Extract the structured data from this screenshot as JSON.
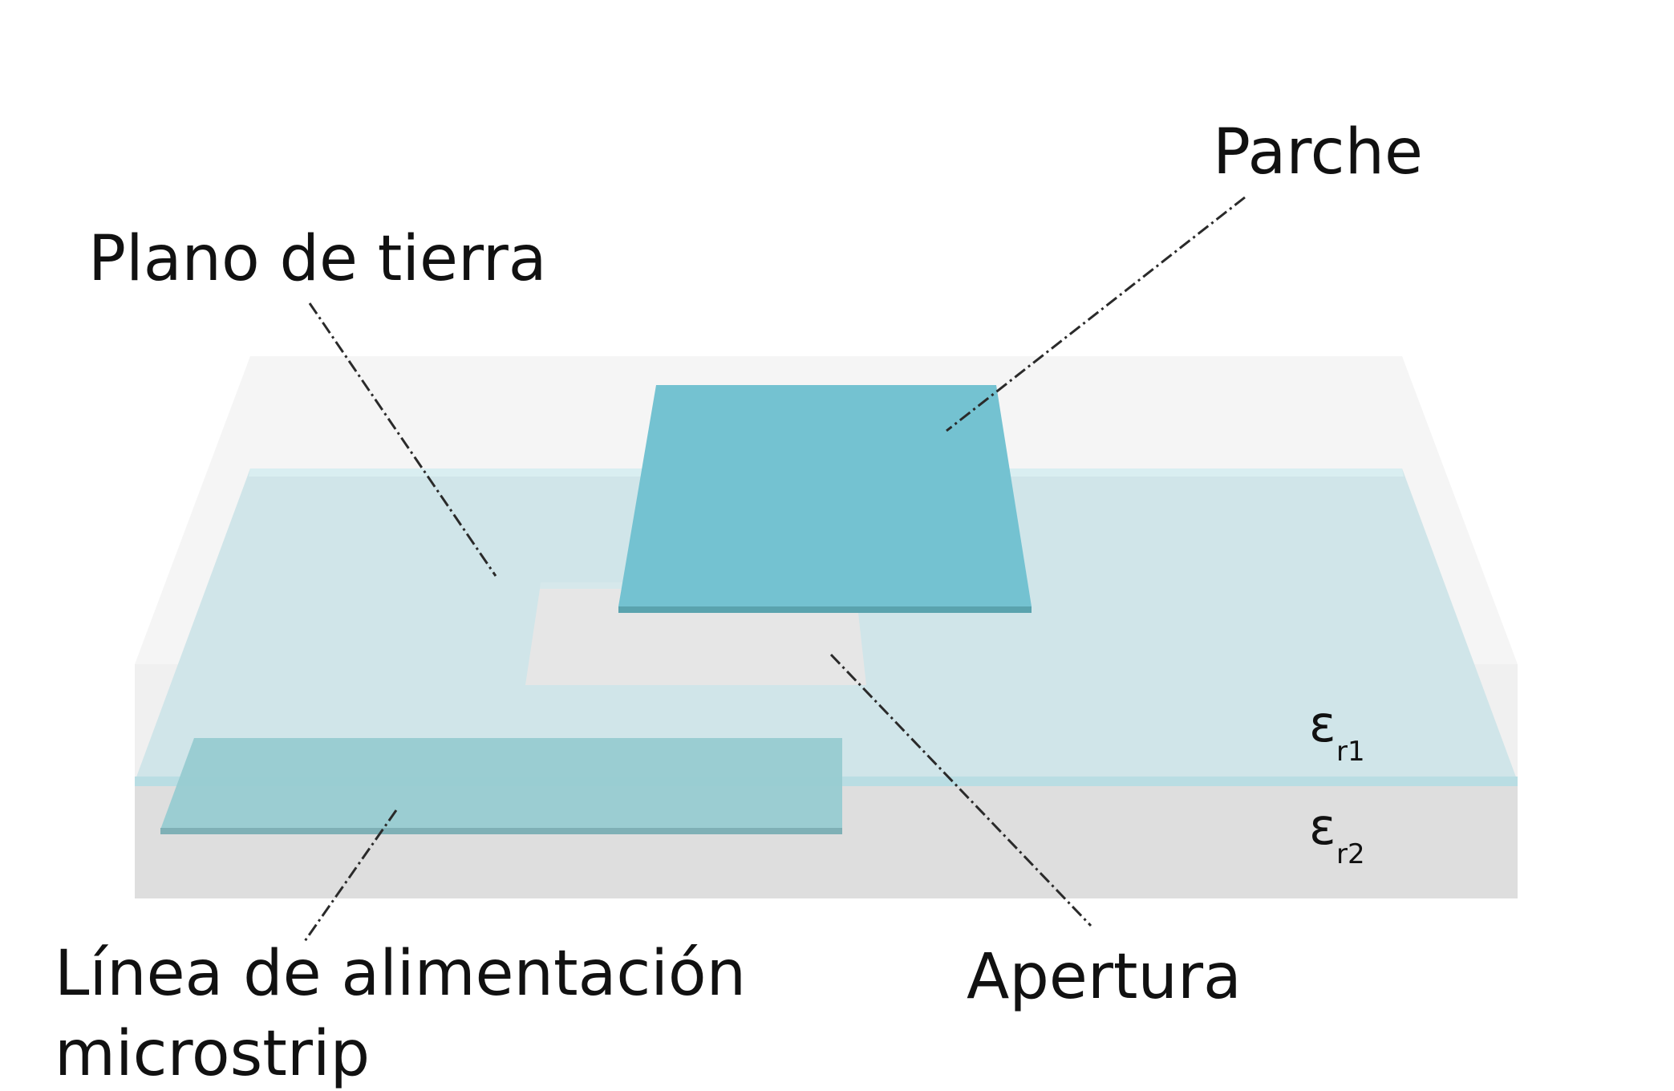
{
  "labels": {
    "patch": "Parche",
    "ground_plane": "Plano de tierra",
    "aperture": "Apertura",
    "feed_line_1": "Línea de alimentación",
    "feed_line_2": "microstrip"
  },
  "permittivity": {
    "upper_symbol": "ε",
    "upper_sub": "r1",
    "lower_symbol": "ε",
    "lower_sub": "r2"
  },
  "colors": {
    "upper_substrate": "#f5f5f5",
    "lower_substrate": "#dedede",
    "ground_plane": "#cde4e8",
    "patch": "#74c2d1",
    "feed_line": "#97cbd1",
    "aperture": "#e6e6e6"
  }
}
